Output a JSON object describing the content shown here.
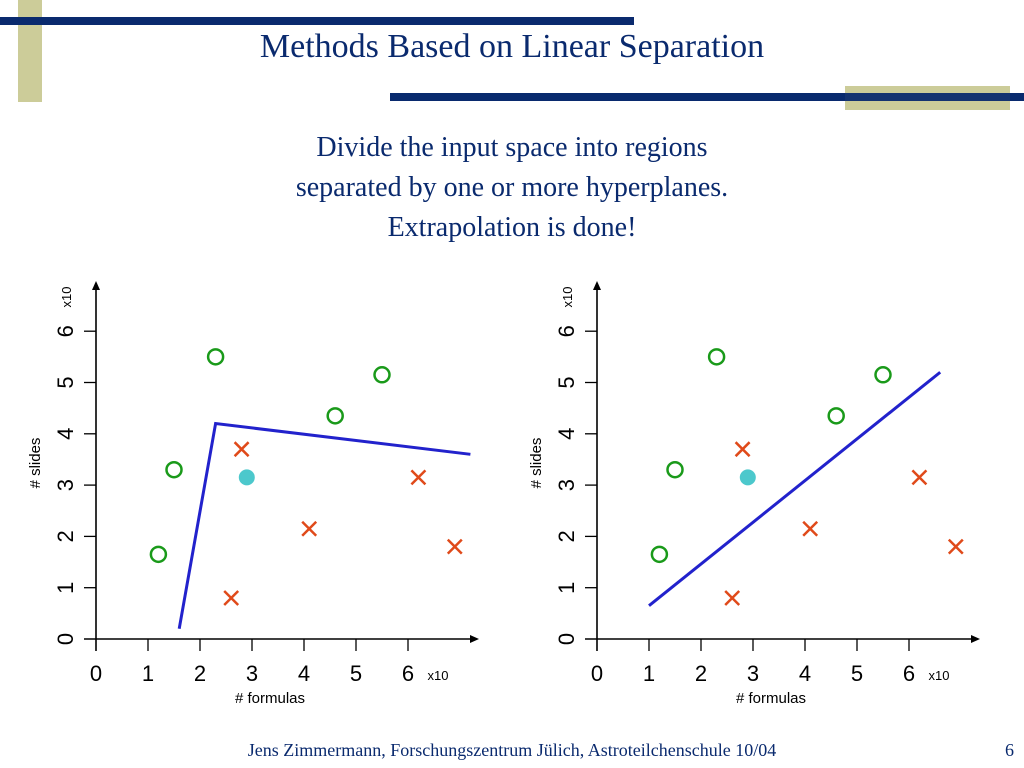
{
  "slide": {
    "title": "Methods Based on Linear Separation",
    "subtitle_lines": [
      "Divide the input space into regions",
      "separated by one or more hyperplanes.",
      "Extrapolation is done!"
    ],
    "footer": "Jens Zimmermann, Forschungszentrum Jülich, Astroteilchenschule 10/04",
    "page_number": "6"
  },
  "colors": {
    "title_text": "#0a2a6e",
    "bar_navy": "#0a2a6e",
    "bar_khaki": "#cccc99",
    "circle_class": "#1a9a1a",
    "cross_class": "#e04a1a",
    "query_point": "#4cc8cc",
    "separator": "#2222cc"
  },
  "chart_data": [
    {
      "type": "scatter",
      "title": "",
      "xlabel": "#  formulas",
      "ylabel": "# slides",
      "x_multiplier_label": "x10",
      "y_multiplier_label": "x10",
      "xlim": [
        0,
        7.2
      ],
      "ylim": [
        0,
        6.7
      ],
      "xticks": [
        "0",
        "1",
        "2",
        "3",
        "4",
        "5",
        "6"
      ],
      "yticks": [
        "0",
        "1",
        "2",
        "3",
        "4",
        "5",
        "6"
      ],
      "series": [
        {
          "marker": "circle",
          "points": [
            [
              1.2,
              1.65
            ],
            [
              1.5,
              3.3
            ],
            [
              2.3,
              5.5
            ],
            [
              4.6,
              4.35
            ],
            [
              5.5,
              5.15
            ]
          ]
        },
        {
          "marker": "cross",
          "points": [
            [
              2.6,
              0.8
            ],
            [
              2.8,
              3.7
            ],
            [
              4.1,
              2.15
            ],
            [
              6.2,
              3.15
            ],
            [
              6.9,
              1.8
            ]
          ]
        },
        {
          "marker": "query",
          "points": [
            [
              2.9,
              3.15
            ]
          ]
        }
      ],
      "separator": [
        [
          1.6,
          0.2
        ],
        [
          2.3,
          4.2
        ],
        [
          7.2,
          3.6
        ]
      ]
    },
    {
      "type": "scatter",
      "title": "",
      "xlabel": "#  formulas",
      "ylabel": "# slides",
      "x_multiplier_label": "x10",
      "y_multiplier_label": "x10",
      "xlim": [
        0,
        7.2
      ],
      "ylim": [
        0,
        6.7
      ],
      "xticks": [
        "0",
        "1",
        "2",
        "3",
        "4",
        "5",
        "6"
      ],
      "yticks": [
        "0",
        "1",
        "2",
        "3",
        "4",
        "5",
        "6"
      ],
      "series": [
        {
          "marker": "circle",
          "points": [
            [
              1.2,
              1.65
            ],
            [
              1.5,
              3.3
            ],
            [
              2.3,
              5.5
            ],
            [
              4.6,
              4.35
            ],
            [
              5.5,
              5.15
            ]
          ]
        },
        {
          "marker": "cross",
          "points": [
            [
              2.6,
              0.8
            ],
            [
              2.8,
              3.7
            ],
            [
              4.1,
              2.15
            ],
            [
              6.2,
              3.15
            ],
            [
              6.9,
              1.8
            ]
          ]
        },
        {
          "marker": "query",
          "points": [
            [
              2.9,
              3.15
            ]
          ]
        }
      ],
      "separator": [
        [
          1.0,
          0.65
        ],
        [
          6.6,
          5.2
        ]
      ]
    }
  ]
}
